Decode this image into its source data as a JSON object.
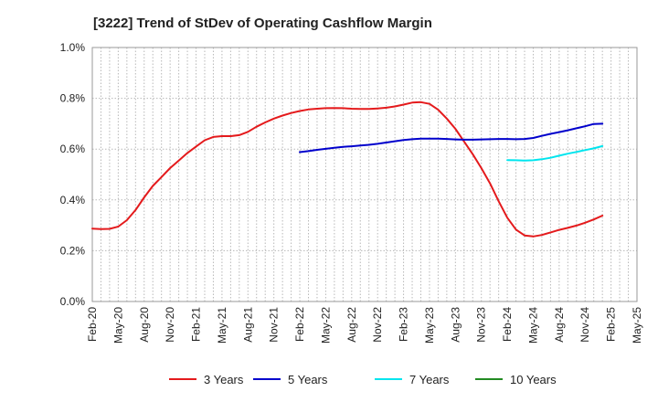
{
  "chart_data": {
    "type": "line",
    "title": "[3222]  Trend of StDev of Operating Cashflow Margin",
    "xlabel": "",
    "ylabel": "",
    "ylim": [
      0,
      1.0
    ],
    "y_tick_values": [
      0,
      0.2,
      0.4,
      0.6,
      0.8,
      1.0
    ],
    "y_tick_labels": [
      "0.0%",
      "0.2%",
      "0.4%",
      "0.6%",
      "0.8%",
      "1.0%"
    ],
    "x_tick_labels": [
      "Feb-20",
      "May-20",
      "Aug-20",
      "Nov-20",
      "Feb-21",
      "May-21",
      "Aug-21",
      "Nov-21",
      "Feb-22",
      "May-22",
      "Aug-22",
      "Nov-22",
      "Feb-23",
      "May-23",
      "Aug-23",
      "Nov-23",
      "Feb-24",
      "May-24",
      "Aug-24",
      "Nov-24",
      "Feb-25",
      "May-25"
    ],
    "x_range": [
      "2020-02",
      "2025-05"
    ],
    "grid": true,
    "legend_position": "bottom",
    "series": [
      {
        "name": "3 Years",
        "color": "#e41a1c",
        "points": [
          [
            "2020-02",
            0.287
          ],
          [
            "2020-03",
            0.285
          ],
          [
            "2020-04",
            0.286
          ],
          [
            "2020-05",
            0.295
          ],
          [
            "2020-06",
            0.32
          ],
          [
            "2020-07",
            0.36
          ],
          [
            "2020-08",
            0.41
          ],
          [
            "2020-09",
            0.455
          ],
          [
            "2020-10",
            0.49
          ],
          [
            "2020-11",
            0.525
          ],
          [
            "2020-12",
            0.555
          ],
          [
            "2021-01",
            0.585
          ],
          [
            "2021-02",
            0.61
          ],
          [
            "2021-03",
            0.635
          ],
          [
            "2021-04",
            0.648
          ],
          [
            "2021-05",
            0.651
          ],
          [
            "2021-06",
            0.651
          ],
          [
            "2021-07",
            0.655
          ],
          [
            "2021-08",
            0.668
          ],
          [
            "2021-09",
            0.688
          ],
          [
            "2021-10",
            0.705
          ],
          [
            "2021-11",
            0.72
          ],
          [
            "2021-12",
            0.732
          ],
          [
            "2022-01",
            0.742
          ],
          [
            "2022-02",
            0.75
          ],
          [
            "2022-03",
            0.756
          ],
          [
            "2022-04",
            0.759
          ],
          [
            "2022-05",
            0.761
          ],
          [
            "2022-06",
            0.762
          ],
          [
            "2022-07",
            0.761
          ],
          [
            "2022-08",
            0.759
          ],
          [
            "2022-09",
            0.758
          ],
          [
            "2022-10",
            0.758
          ],
          [
            "2022-11",
            0.76
          ],
          [
            "2022-12",
            0.763
          ],
          [
            "2023-01",
            0.768
          ],
          [
            "2023-02",
            0.775
          ],
          [
            "2023-03",
            0.783
          ],
          [
            "2023-04",
            0.785
          ],
          [
            "2023-05",
            0.778
          ],
          [
            "2023-06",
            0.755
          ],
          [
            "2023-07",
            0.72
          ],
          [
            "2023-08",
            0.68
          ],
          [
            "2023-09",
            0.63
          ],
          [
            "2023-10",
            0.58
          ],
          [
            "2023-11",
            0.525
          ],
          [
            "2023-12",
            0.465
          ],
          [
            "2024-01",
            0.395
          ],
          [
            "2024-02",
            0.33
          ],
          [
            "2024-03",
            0.283
          ],
          [
            "2024-04",
            0.26
          ],
          [
            "2024-05",
            0.256
          ],
          [
            "2024-06",
            0.262
          ],
          [
            "2024-07",
            0.272
          ],
          [
            "2024-08",
            0.282
          ],
          [
            "2024-09",
            0.29
          ],
          [
            "2024-10",
            0.299
          ],
          [
            "2024-11",
            0.31
          ],
          [
            "2024-12",
            0.323
          ],
          [
            "2025-01",
            0.338
          ]
        ]
      },
      {
        "name": "5 Years",
        "color": "#0000cc",
        "points": [
          [
            "2022-02",
            0.588
          ],
          [
            "2022-03",
            0.592
          ],
          [
            "2022-04",
            0.597
          ],
          [
            "2022-05",
            0.601
          ],
          [
            "2022-06",
            0.605
          ],
          [
            "2022-07",
            0.609
          ],
          [
            "2022-08",
            0.611
          ],
          [
            "2022-09",
            0.614
          ],
          [
            "2022-10",
            0.617
          ],
          [
            "2022-11",
            0.621
          ],
          [
            "2022-12",
            0.626
          ],
          [
            "2023-01",
            0.631
          ],
          [
            "2023-02",
            0.636
          ],
          [
            "2023-03",
            0.639
          ],
          [
            "2023-04",
            0.641
          ],
          [
            "2023-05",
            0.641
          ],
          [
            "2023-06",
            0.641
          ],
          [
            "2023-07",
            0.64
          ],
          [
            "2023-08",
            0.638
          ],
          [
            "2023-09",
            0.637
          ],
          [
            "2023-10",
            0.637
          ],
          [
            "2023-11",
            0.638
          ],
          [
            "2023-12",
            0.639
          ],
          [
            "2024-01",
            0.64
          ],
          [
            "2024-02",
            0.64
          ],
          [
            "2024-03",
            0.639
          ],
          [
            "2024-04",
            0.64
          ],
          [
            "2024-05",
            0.644
          ],
          [
            "2024-06",
            0.652
          ],
          [
            "2024-07",
            0.66
          ],
          [
            "2024-08",
            0.667
          ],
          [
            "2024-09",
            0.674
          ],
          [
            "2024-10",
            0.682
          ],
          [
            "2024-11",
            0.69
          ],
          [
            "2024-12",
            0.699
          ],
          [
            "2025-01",
            0.7
          ]
        ]
      },
      {
        "name": "7 Years",
        "color": "#00e5ee",
        "points": [
          [
            "2024-02",
            0.557
          ],
          [
            "2024-03",
            0.556
          ],
          [
            "2024-04",
            0.555
          ],
          [
            "2024-05",
            0.556
          ],
          [
            "2024-06",
            0.56
          ],
          [
            "2024-07",
            0.566
          ],
          [
            "2024-08",
            0.574
          ],
          [
            "2024-09",
            0.582
          ],
          [
            "2024-10",
            0.589
          ],
          [
            "2024-11",
            0.596
          ],
          [
            "2024-12",
            0.603
          ],
          [
            "2025-01",
            0.612
          ]
        ]
      },
      {
        "name": "10 Years",
        "color": "#228b22",
        "points": []
      }
    ]
  }
}
